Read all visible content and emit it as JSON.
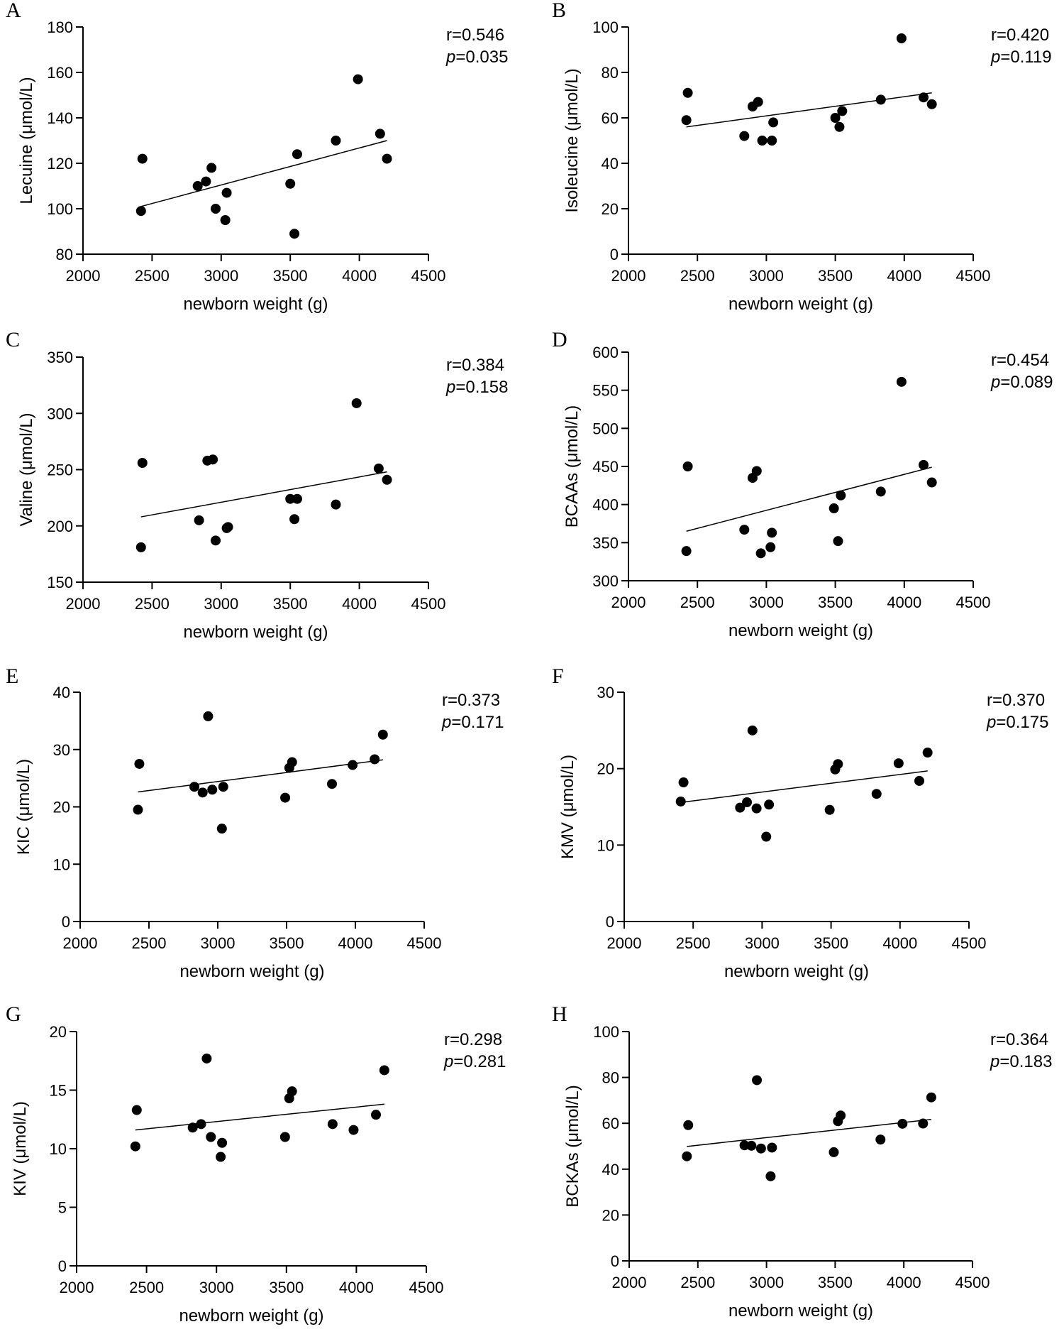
{
  "figure": {
    "description_text": "",
    "point_color": "#000000",
    "line_color": "#000000"
  },
  "chart_data": [
    {
      "type": "scatter",
      "panel": "A",
      "xlabel": "newborn weight (g)",
      "ylabel": "Lecuine (μmol/L)",
      "xlim": [
        2000,
        4500
      ],
      "ylim": [
        80,
        180
      ],
      "xticks": [
        2000,
        2500,
        3000,
        3500,
        4000,
        4500
      ],
      "yticks": [
        80,
        100,
        120,
        140,
        160,
        180
      ],
      "r_text": "r=0.546",
      "p_label": "p",
      "p_value": "=0.035",
      "points": [
        [
          2420,
          99
        ],
        [
          2430,
          122
        ],
        [
          2830,
          110
        ],
        [
          2890,
          112
        ],
        [
          2930,
          118
        ],
        [
          2960,
          100
        ],
        [
          3030,
          95
        ],
        [
          3040,
          107
        ],
        [
          3500,
          111
        ],
        [
          3530,
          89
        ],
        [
          3550,
          124
        ],
        [
          3830,
          130
        ],
        [
          3990,
          157
        ],
        [
          4150,
          133
        ],
        [
          4200,
          122
        ]
      ],
      "fit": [
        [
          2420,
          101
        ],
        [
          4200,
          130
        ]
      ]
    },
    {
      "type": "scatter",
      "panel": "B",
      "xlabel": "newborn weight (g)",
      "ylabel": "Isoleucine (μmol/L)",
      "xlim": [
        2000,
        4500
      ],
      "ylim": [
        0,
        100
      ],
      "xticks": [
        2000,
        2500,
        3000,
        3500,
        4000,
        4500
      ],
      "yticks": [
        0,
        20,
        40,
        60,
        80,
        100
      ],
      "r_text": "r=0.420",
      "p_label": "p",
      "p_value": "=0.119",
      "points": [
        [
          2420,
          59
        ],
        [
          2430,
          71
        ],
        [
          2840,
          52
        ],
        [
          2900,
          65
        ],
        [
          2940,
          67
        ],
        [
          2970,
          50
        ],
        [
          3040,
          50
        ],
        [
          3050,
          58
        ],
        [
          3500,
          60
        ],
        [
          3530,
          56
        ],
        [
          3550,
          63
        ],
        [
          3830,
          68
        ],
        [
          3980,
          95
        ],
        [
          4140,
          69
        ],
        [
          4200,
          66
        ]
      ],
      "fit": [
        [
          2420,
          56
        ],
        [
          4200,
          71
        ]
      ]
    },
    {
      "type": "scatter",
      "panel": "C",
      "xlabel": "newborn weight (g)",
      "ylabel": "Valine (μmol/L)",
      "xlim": [
        2000,
        4500
      ],
      "ylim": [
        150,
        350
      ],
      "xticks": [
        2000,
        2500,
        3000,
        3500,
        4000,
        4500
      ],
      "yticks": [
        150,
        200,
        250,
        300,
        350
      ],
      "r_text": "r=0.384",
      "p_label": "p",
      "p_value": "=0.158",
      "points": [
        [
          2420,
          181
        ],
        [
          2430,
          256
        ],
        [
          2840,
          205
        ],
        [
          2900,
          258
        ],
        [
          2940,
          259
        ],
        [
          2960,
          187
        ],
        [
          3040,
          198
        ],
        [
          3050,
          199
        ],
        [
          3500,
          224
        ],
        [
          3530,
          206
        ],
        [
          3550,
          224
        ],
        [
          3830,
          219
        ],
        [
          3980,
          309
        ],
        [
          4140,
          251
        ],
        [
          4200,
          241
        ]
      ],
      "fit": [
        [
          2420,
          208
        ],
        [
          4200,
          248
        ]
      ]
    },
    {
      "type": "scatter",
      "panel": "D",
      "xlabel": "newborn weight (g)",
      "ylabel": "BCAAs (μmol/L)",
      "xlim": [
        2000,
        4500
      ],
      "ylim": [
        300,
        600
      ],
      "xticks": [
        2000,
        2500,
        3000,
        3500,
        4000,
        4500
      ],
      "yticks": [
        300,
        350,
        400,
        450,
        500,
        550,
        600
      ],
      "r_text": "r=0.454",
      "p_label": "p",
      "p_value": "=0.089",
      "points": [
        [
          2420,
          339
        ],
        [
          2430,
          450
        ],
        [
          2840,
          367
        ],
        [
          2900,
          435
        ],
        [
          2930,
          444
        ],
        [
          2960,
          336
        ],
        [
          3030,
          344
        ],
        [
          3040,
          363
        ],
        [
          3490,
          395
        ],
        [
          3520,
          352
        ],
        [
          3540,
          412
        ],
        [
          3830,
          417
        ],
        [
          3980,
          561
        ],
        [
          4140,
          452
        ],
        [
          4200,
          429
        ]
      ],
      "fit": [
        [
          2420,
          365
        ],
        [
          4200,
          449
        ]
      ]
    },
    {
      "type": "scatter",
      "panel": "E",
      "xlabel": "newborn weight (g)",
      "ylabel": "KIC (μmol/L)",
      "xlim": [
        2000,
        4500
      ],
      "ylim": [
        0,
        40
      ],
      "xticks": [
        2000,
        2500,
        3000,
        3500,
        4000,
        4500
      ],
      "yticks": [
        0,
        10,
        20,
        30,
        40
      ],
      "r_text": "r=0.373",
      "p_label": "p",
      "p_value": "=0.171",
      "points": [
        [
          2420,
          19.5
        ],
        [
          2430,
          27.5
        ],
        [
          2830,
          23.5
        ],
        [
          2890,
          22.5
        ],
        [
          2930,
          35.8
        ],
        [
          2960,
          23.0
        ],
        [
          3030,
          16.2
        ],
        [
          3040,
          23.5
        ],
        [
          3490,
          21.6
        ],
        [
          3520,
          26.8
        ],
        [
          3540,
          27.8
        ],
        [
          3830,
          24.0
        ],
        [
          3980,
          27.3
        ],
        [
          4140,
          28.3
        ],
        [
          4200,
          32.6
        ]
      ],
      "fit": [
        [
          2420,
          22.6
        ],
        [
          4200,
          28.2
        ]
      ]
    },
    {
      "type": "scatter",
      "panel": "F",
      "xlabel": "newborn weight (g)",
      "ylabel": "KMV (μmol/L)",
      "xlim": [
        2000,
        4500
      ],
      "ylim": [
        0,
        30
      ],
      "xticks": [
        2000,
        2500,
        3000,
        3500,
        4000,
        4500
      ],
      "yticks": [
        0,
        10,
        20,
        30
      ],
      "r_text": "r=0.370",
      "p_label": "p",
      "p_value": "=0.175",
      "points": [
        [
          2410,
          15.7
        ],
        [
          2430,
          18.2
        ],
        [
          2840,
          14.9
        ],
        [
          2890,
          15.6
        ],
        [
          2930,
          25.0
        ],
        [
          2960,
          14.8
        ],
        [
          3030,
          11.1
        ],
        [
          3050,
          15.3
        ],
        [
          3490,
          14.6
        ],
        [
          3530,
          19.9
        ],
        [
          3550,
          20.6
        ],
        [
          3830,
          16.7
        ],
        [
          3990,
          20.7
        ],
        [
          4140,
          18.4
        ],
        [
          4200,
          22.1
        ]
      ],
      "fit": [
        [
          2420,
          15.6
        ],
        [
          4200,
          19.7
        ]
      ]
    },
    {
      "type": "scatter",
      "panel": "G",
      "xlabel": "newborn weight (g)",
      "ylabel": "KIV (μmol/L)",
      "xlim": [
        2000,
        4500
      ],
      "ylim": [
        0,
        20
      ],
      "xticks": [
        2000,
        2500,
        3000,
        3500,
        4000,
        4500
      ],
      "yticks": [
        0,
        5,
        10,
        15,
        20
      ],
      "r_text": "r=0.298",
      "p_label": "p",
      "p_value": "=0.281",
      "points": [
        [
          2420,
          10.2
        ],
        [
          2430,
          13.3
        ],
        [
          2830,
          11.8
        ],
        [
          2890,
          12.1
        ],
        [
          2930,
          17.7
        ],
        [
          2960,
          11.0
        ],
        [
          3030,
          9.3
        ],
        [
          3040,
          10.5
        ],
        [
          3490,
          11.0
        ],
        [
          3520,
          14.3
        ],
        [
          3540,
          14.9
        ],
        [
          3830,
          12.1
        ],
        [
          3980,
          11.6
        ],
        [
          4140,
          12.9
        ],
        [
          4200,
          16.7
        ]
      ],
      "fit": [
        [
          2420,
          11.6
        ],
        [
          4200,
          13.8
        ]
      ]
    },
    {
      "type": "scatter",
      "panel": "H",
      "xlabel": "newborn weight (g)",
      "ylabel": "BCKAs (μmol/L)",
      "xlim": [
        2000,
        4500
      ],
      "ylim": [
        0,
        100
      ],
      "xticks": [
        2000,
        2500,
        3000,
        3500,
        4000,
        4500
      ],
      "yticks": [
        0,
        20,
        40,
        60,
        80,
        100
      ],
      "r_text": "r=0.364",
      "p_label": "p",
      "p_value": "=0.183",
      "points": [
        [
          2420,
          45.6
        ],
        [
          2430,
          59.2
        ],
        [
          2840,
          50.4
        ],
        [
          2890,
          50.2
        ],
        [
          2930,
          78.8
        ],
        [
          2960,
          49.0
        ],
        [
          3030,
          36.9
        ],
        [
          3040,
          49.4
        ],
        [
          3490,
          47.4
        ],
        [
          3520,
          60.9
        ],
        [
          3540,
          63.4
        ],
        [
          3830,
          52.9
        ],
        [
          3990,
          59.8
        ],
        [
          4140,
          59.9
        ],
        [
          4200,
          71.3
        ]
      ],
      "fit": [
        [
          2420,
          49.9
        ],
        [
          4200,
          61.7
        ]
      ]
    }
  ]
}
